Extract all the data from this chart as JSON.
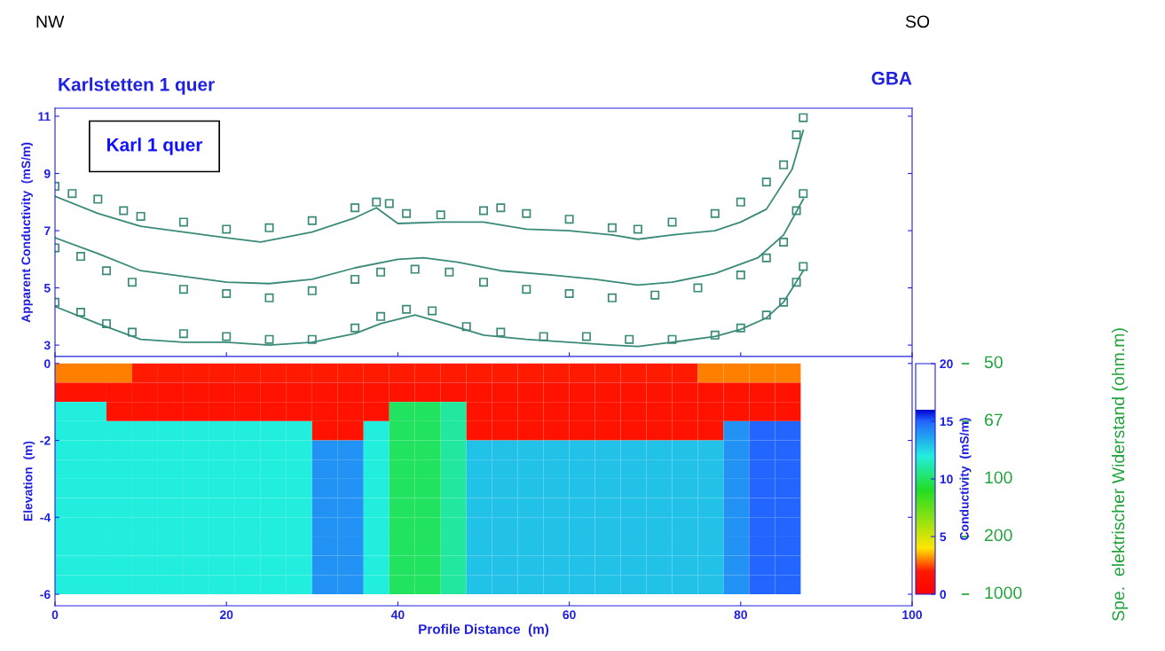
{
  "chart_data": [
    {
      "type": "line",
      "title": "Karlstetten 1 quer",
      "ylabel": "Apparent Conductivity  (mS/m)",
      "xlim": [
        0,
        100
      ],
      "xticks": [
        0,
        20,
        40,
        60,
        80,
        100
      ],
      "ylim": [
        2.6,
        11.28
      ],
      "yticks": [
        3,
        5,
        7,
        9,
        11
      ],
      "tick_labels": "y",
      "grid": false,
      "legend": false,
      "annotations": [
        "NW",
        "SO",
        "GBA",
        "Karl 1 quer"
      ],
      "series": [
        {
          "type": "scatter",
          "marker": "square",
          "color": "#3a8a7a",
          "x": [
            0,
            2,
            5,
            8,
            10,
            15,
            20,
            25,
            30,
            35,
            37.5,
            39,
            41,
            45,
            50,
            52,
            55,
            60,
            65,
            68,
            72,
            77,
            80,
            83,
            85,
            86.5,
            87.3
          ],
          "values": [
            8.55,
            8.3,
            8.1,
            7.7,
            7.5,
            7.3,
            7.05,
            7.1,
            7.35,
            7.8,
            8.0,
            7.95,
            7.6,
            7.55,
            7.7,
            7.8,
            7.6,
            7.4,
            7.1,
            7.05,
            7.3,
            7.6,
            8.0,
            8.7,
            9.3,
            10.35,
            10.95
          ]
        },
        {
          "type": "line",
          "color": "#3a8a7a",
          "x": [
            0,
            5,
            10,
            15,
            20,
            24,
            30,
            35,
            37.5,
            40,
            45,
            50,
            55,
            60,
            65,
            68,
            72,
            77,
            80,
            83,
            86,
            87.3
          ],
          "values": [
            8.2,
            7.6,
            7.15,
            6.95,
            6.75,
            6.6,
            6.95,
            7.45,
            7.8,
            7.25,
            7.3,
            7.3,
            7.05,
            7.0,
            6.85,
            6.7,
            6.85,
            7.0,
            7.3,
            7.75,
            9.15,
            10.5
          ]
        },
        {
          "type": "scatter",
          "marker": "square",
          "color": "#3a8a7a",
          "x": [
            0,
            3,
            6,
            9,
            15,
            20,
            25,
            30,
            35,
            38,
            42,
            46,
            50,
            55,
            60,
            65,
            70,
            75,
            80,
            83,
            85,
            86.5,
            87.3
          ],
          "values": [
            6.4,
            6.1,
            5.6,
            5.2,
            4.95,
            4.8,
            4.65,
            4.9,
            5.3,
            5.55,
            5.65,
            5.55,
            5.2,
            4.95,
            4.8,
            4.65,
            4.75,
            5.0,
            5.45,
            6.05,
            6.6,
            7.7,
            8.3
          ]
        },
        {
          "type": "line",
          "color": "#3a8a7a",
          "x": [
            0,
            5,
            10,
            15,
            20,
            25,
            30,
            35,
            40,
            43,
            47,
            52,
            58,
            63,
            68,
            72,
            77,
            82,
            85,
            87.3
          ],
          "values": [
            6.75,
            6.2,
            5.6,
            5.4,
            5.2,
            5.15,
            5.3,
            5.7,
            6.0,
            6.05,
            5.9,
            5.6,
            5.45,
            5.3,
            5.1,
            5.2,
            5.5,
            6.05,
            6.85,
            8.1
          ]
        },
        {
          "type": "scatter",
          "marker": "square",
          "color": "#3a8a7a",
          "x": [
            0,
            3,
            6,
            9,
            15,
            20,
            25,
            30,
            35,
            38,
            41,
            44,
            48,
            52,
            57,
            62,
            67,
            72,
            77,
            80,
            83,
            85,
            86.5,
            87.3
          ],
          "values": [
            4.5,
            4.15,
            3.75,
            3.45,
            3.4,
            3.3,
            3.2,
            3.2,
            3.6,
            4.0,
            4.25,
            4.2,
            3.65,
            3.45,
            3.3,
            3.3,
            3.2,
            3.2,
            3.35,
            3.6,
            4.05,
            4.5,
            5.2,
            5.75
          ]
        },
        {
          "type": "line",
          "color": "#3a8a7a",
          "x": [
            0,
            5,
            10,
            15,
            20,
            25,
            30,
            35,
            38,
            42,
            45,
            50,
            55,
            60,
            65,
            68,
            72,
            77,
            80,
            83,
            85,
            87.3
          ],
          "values": [
            4.35,
            3.75,
            3.2,
            3.1,
            3.1,
            3.0,
            3.1,
            3.4,
            3.75,
            4.05,
            3.8,
            3.35,
            3.2,
            3.1,
            3.0,
            2.95,
            3.1,
            3.3,
            3.55,
            3.95,
            4.5,
            5.6
          ]
        }
      ]
    },
    {
      "type": "heatmap",
      "xlabel": "Profile Distance  (m)",
      "ylabel": "Elevation  (m)",
      "clabel": "Conductivity  (mS/m)",
      "xlim": [
        0,
        100
      ],
      "xticks": [
        0,
        20,
        40,
        60,
        80,
        100
      ],
      "ylim": [
        -6.3,
        0.18
      ],
      "yticks": [
        0,
        -2,
        -4,
        -6
      ],
      "clim": [
        0,
        20
      ],
      "cticks": [
        0,
        5,
        10,
        15,
        20
      ],
      "grid": false,
      "annotations": [
        "50",
        "67",
        "100",
        "200",
        "1000",
        "Spe.  elektrischer Widerstand (ohm.m)"
      ],
      "x": [
        1.5,
        4.5,
        7.5,
        10.5,
        13.5,
        16.5,
        19.5,
        22.5,
        25.5,
        28.5,
        31.5,
        34.5,
        37.5,
        40.5,
        43.5,
        46.5,
        49.5,
        52.5,
        55.5,
        58.5,
        61.5,
        64.5,
        67.5,
        70.5,
        73.5,
        76.5,
        79.5,
        82.5,
        85.5
      ],
      "y": [
        -0.25,
        -0.75,
        -1.25,
        -1.75,
        -2.25,
        -2.75,
        -3.25,
        -3.75,
        -4.25,
        -4.75,
        -5.25,
        -5.75
      ],
      "cells": [
        [
          3,
          3,
          3,
          2,
          2,
          2,
          2,
          2,
          2,
          2,
          2,
          2,
          2,
          2,
          2,
          2,
          2,
          2,
          2,
          2,
          2,
          2,
          2,
          2,
          2,
          3,
          3,
          3,
          3
        ],
        [
          1.5,
          1.5,
          1.5,
          1.5,
          1.5,
          1.5,
          1.5,
          1.5,
          1.5,
          1.5,
          1.5,
          1.5,
          1.5,
          1.5,
          1.5,
          1.5,
          1.5,
          1.5,
          1.5,
          1.5,
          1.5,
          1.5,
          1.5,
          1.5,
          1.5,
          1.5,
          1.5,
          1.5,
          1.5
        ],
        [
          12,
          12,
          1.5,
          1.5,
          1.5,
          1.5,
          1.5,
          1.5,
          1.5,
          1.5,
          1.5,
          1.5,
          1.5,
          10,
          10,
          11,
          1.5,
          1.5,
          1.5,
          1.5,
          1.5,
          1.5,
          1.5,
          1.5,
          1.5,
          1.5,
          1.5,
          1.5,
          1.5
        ],
        [
          12,
          12,
          12,
          12,
          12,
          12,
          12,
          12,
          12,
          12,
          1.5,
          1.5,
          12,
          10,
          10,
          11,
          1.5,
          1.5,
          1.5,
          1.5,
          1.5,
          1.5,
          1.5,
          1.5,
          1.5,
          1.5,
          14,
          15,
          15
        ],
        [
          12,
          12,
          12,
          12,
          12,
          12,
          12,
          12,
          12,
          12,
          14,
          14,
          12,
          10,
          10,
          11,
          13,
          13,
          13,
          13,
          13,
          13,
          13,
          13,
          13,
          13,
          14,
          15,
          15
        ],
        [
          12,
          12,
          12,
          12,
          12,
          12,
          12,
          12,
          12,
          12,
          14,
          14,
          12,
          10,
          10,
          11,
          13,
          13,
          13,
          13,
          13,
          13,
          13,
          13,
          13,
          13,
          14,
          15,
          15
        ],
        [
          12,
          12,
          12,
          12,
          12,
          12,
          12,
          12,
          12,
          12,
          14,
          14,
          12,
          10,
          10,
          11,
          13,
          13,
          13,
          13,
          13,
          13,
          13,
          13,
          13,
          13,
          14,
          15,
          15
        ],
        [
          12,
          12,
          12,
          12,
          12,
          12,
          12,
          12,
          12,
          12,
          14,
          14,
          12,
          10,
          10,
          11,
          13,
          13,
          13,
          13,
          13,
          13,
          13,
          13,
          13,
          13,
          14,
          15,
          15
        ],
        [
          12,
          12,
          12,
          12,
          12,
          12,
          12,
          12,
          12,
          12,
          14,
          14,
          12,
          10,
          10,
          11,
          13,
          13,
          13,
          13,
          13,
          13,
          13,
          13,
          13,
          13,
          14,
          15,
          15
        ],
        [
          12,
          12,
          12,
          12,
          12,
          12,
          12,
          12,
          12,
          12,
          14,
          14,
          12,
          10,
          10,
          11,
          13,
          13,
          13,
          13,
          13,
          13,
          13,
          13,
          13,
          13,
          14,
          15,
          15
        ],
        [
          12,
          12,
          12,
          12,
          12,
          12,
          12,
          12,
          12,
          12,
          14,
          14,
          12,
          10,
          10,
          11,
          13,
          13,
          13,
          13,
          13,
          13,
          13,
          13,
          13,
          13,
          14,
          15,
          15
        ],
        [
          12,
          12,
          12,
          12,
          12,
          12,
          12,
          12,
          12,
          12,
          14,
          14,
          12,
          10,
          10,
          11,
          13,
          13,
          13,
          13,
          13,
          13,
          13,
          13,
          13,
          13,
          14,
          15,
          15
        ]
      ]
    }
  ]
}
